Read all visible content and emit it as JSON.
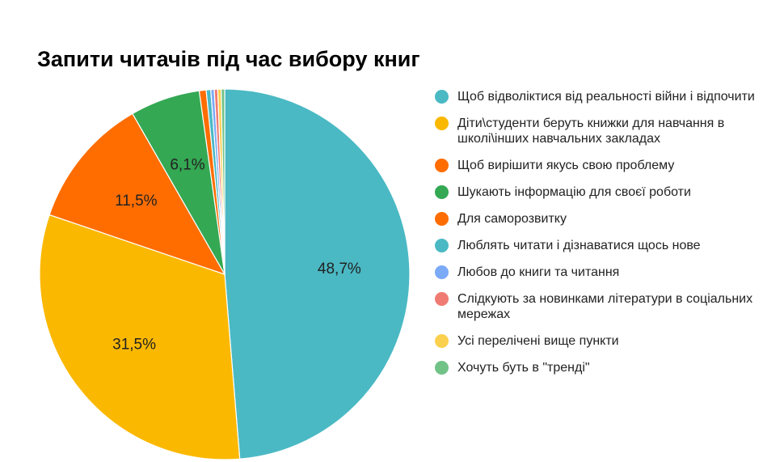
{
  "chart_data": {
    "type": "pie",
    "title": "Запити читачів під час вибору книг",
    "legend_position": "right",
    "start_angle_deg": 0,
    "direction": "clockwise",
    "slices": [
      {
        "label": "Щоб відволіктися від реальності війни і відпочити",
        "value": 48.7,
        "display": "48,7%",
        "color": "#4ab9c4"
      },
      {
        "label": "Діти\\студенти беруть книжки для навчання в школі\\інших навчальних закладах",
        "value": 31.5,
        "display": "31,5%",
        "color": "#fbb800"
      },
      {
        "label": "Щоб вирішити якусь свою проблему",
        "value": 11.5,
        "display": "11,5%",
        "color": "#ff6d01"
      },
      {
        "label": "Шукають інформацію для своєї роботи",
        "value": 6.1,
        "display": "6,1%",
        "color": "#34a853"
      },
      {
        "label": "Для саморозвитку",
        "value": 0.6,
        "display": "",
        "color": "#ff6d01"
      },
      {
        "label": "Люблять читати і дізнаватися щось нове",
        "value": 0.4,
        "display": "",
        "color": "#4ab9c4"
      },
      {
        "label": "Любов до книги та читання",
        "value": 0.3,
        "display": "",
        "color": "#7baaf7"
      },
      {
        "label": "Слідкують за новинками літератури в соціальних мережах",
        "value": 0.3,
        "display": "",
        "color": "#f07b72"
      },
      {
        "label": "Усі перелічені вище пункти",
        "value": 0.3,
        "display": "",
        "color": "#fcd04f"
      },
      {
        "label": "Хочуть буть в \"тренді\"",
        "value": 0.3,
        "display": "",
        "color": "#71c287"
      }
    ]
  }
}
